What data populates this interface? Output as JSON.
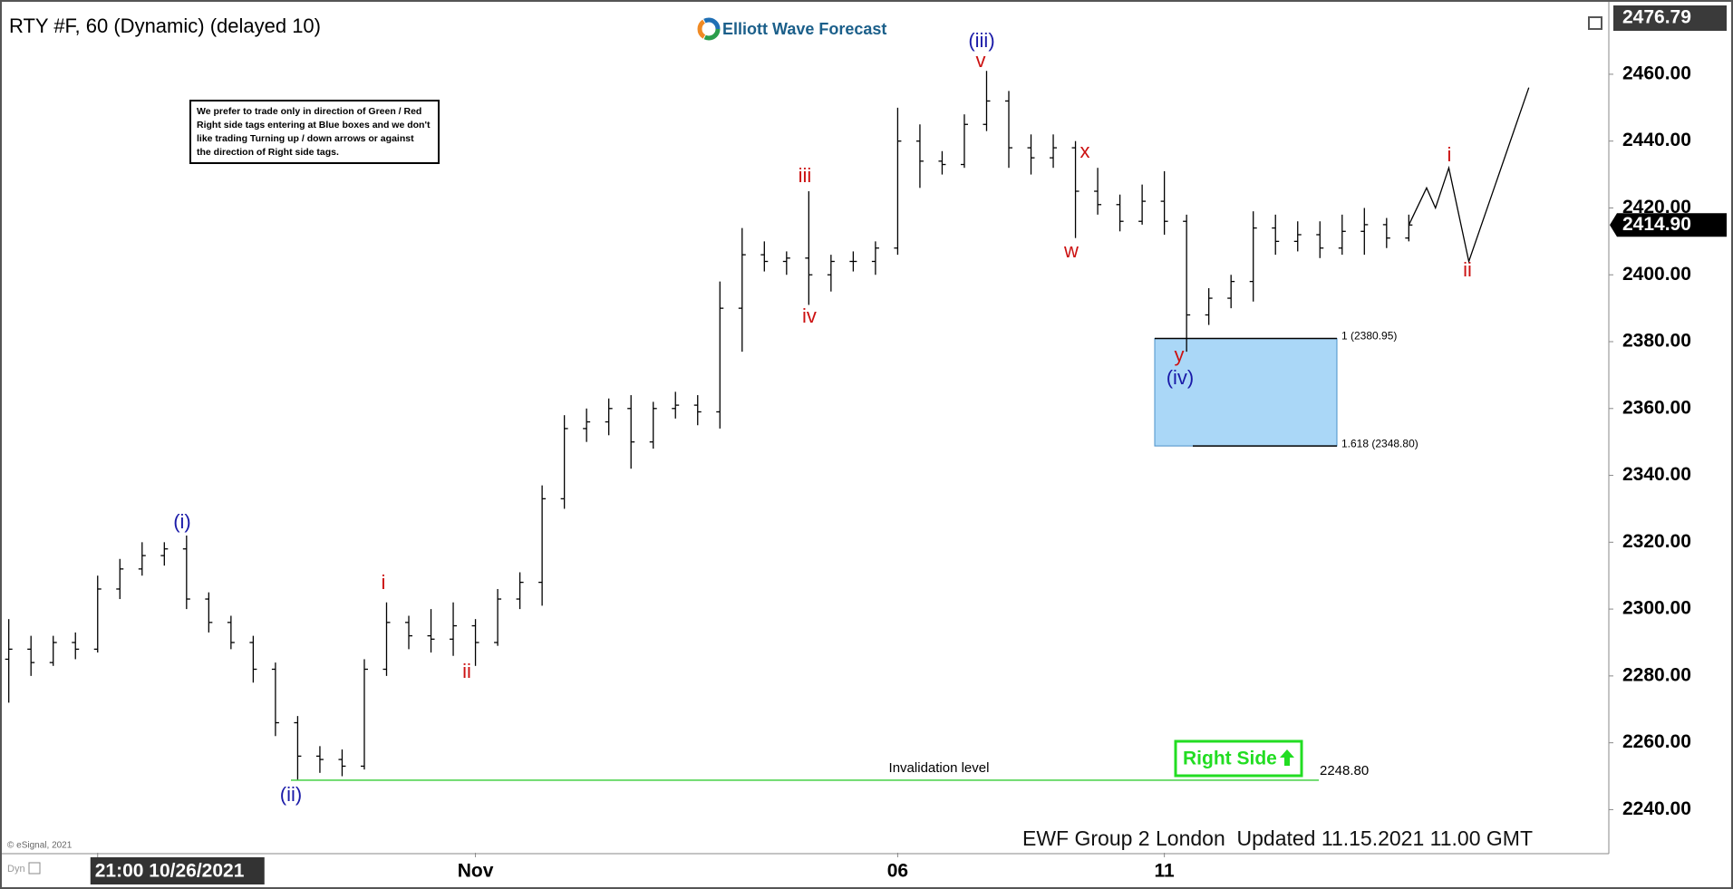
{
  "chart_data": {
    "type": "ohlc",
    "title": "RTY #F, 60 (Dynamic) (delayed 10)",
    "logo": "Elliott Wave Forecast",
    "note": [
      "We prefer to trade only in direction of Green / Red",
      "Right side tags entering at Blue boxes and we don't",
      "like trading Turning up / down arrows or against",
      "the direction of Right side tags."
    ],
    "footer": "EWF Group 2 London  Updated 11.15.2021 11.00 GMT",
    "copyright": "© eSignal, 2021",
    "mode": "Dyn",
    "x": [
      0,
      1,
      2,
      3,
      4,
      5,
      6,
      7,
      8,
      9,
      10,
      11,
      12,
      13,
      14,
      15,
      16,
      17,
      18,
      19,
      20,
      21,
      22,
      23,
      24,
      25,
      26,
      27,
      28,
      29,
      30,
      31,
      32,
      33,
      34,
      35,
      36,
      37,
      38,
      39,
      40,
      41,
      42,
      43,
      44,
      45,
      46,
      47,
      48,
      49,
      50,
      51,
      52,
      53,
      54,
      55,
      56,
      57,
      58,
      59,
      60,
      61,
      62,
      63
    ],
    "open": [
      2285,
      2288,
      2284,
      2290,
      2288,
      2306,
      2312,
      2316,
      2318,
      2303,
      2296,
      2290,
      2282,
      2266,
      2256,
      2255,
      2253,
      2282,
      2296,
      2292,
      2291,
      2295,
      2290,
      2303,
      2308,
      2333,
      2354,
      2356,
      2360,
      2350,
      2360,
      2361,
      2359,
      2390,
      2406,
      2404,
      2405,
      2400,
      2404,
      2404,
      2408,
      2440,
      2434,
      2433,
      2445,
      2452,
      2438,
      2435,
      2438,
      2425,
      2421,
      2416,
      2422,
      2416,
      2388,
      2393,
      2398,
      2414,
      2410,
      2412,
      2408,
      2413,
      2415,
      2411
    ],
    "high": [
      2297,
      2292,
      2292,
      2293,
      2310,
      2315,
      2320,
      2320,
      2322,
      2305,
      2298,
      2292,
      2284,
      2268,
      2259,
      2258,
      2285,
      2302,
      2298,
      2300,
      2302,
      2297,
      2306,
      2311,
      2337,
      2358,
      2360,
      2363,
      2364,
      2362,
      2365,
      2364,
      2398,
      2414,
      2410,
      2407,
      2425,
      2406,
      2407,
      2410,
      2450,
      2445,
      2437,
      2448,
      2461,
      2455,
      2442,
      2442,
      2440,
      2432,
      2424,
      2427,
      2431,
      2418,
      2396,
      2400,
      2419,
      2418,
      2416,
      2416,
      2418,
      2420,
      2417,
      2418
    ],
    "low": [
      2272,
      2280,
      2283,
      2285,
      2287,
      2303,
      2310,
      2313,
      2300,
      2293,
      2288,
      2278,
      2262,
      2249,
      2251,
      2250,
      2252,
      2280,
      2288,
      2287,
      2286,
      2283,
      2289,
      2300,
      2301,
      2330,
      2350,
      2352,
      2342,
      2348,
      2357,
      2355,
      2354,
      2377,
      2401,
      2400,
      2391,
      2395,
      2401,
      2400,
      2406,
      2426,
      2430,
      2432,
      2443,
      2432,
      2430,
      2432,
      2411,
      2418,
      2413,
      2415,
      2412,
      2377,
      2385,
      2390,
      2392,
      2406,
      2407,
      2405,
      2406,
      2406,
      2408,
      2410
    ],
    "close": [
      2288,
      2284,
      2290,
      2288,
      2306,
      2312,
      2316,
      2318,
      2303,
      2296,
      2290,
      2282,
      2266,
      2256,
      2255,
      2253,
      2282,
      2296,
      2292,
      2291,
      2295,
      2290,
      2303,
      2308,
      2333,
      2354,
      2356,
      2360,
      2350,
      2360,
      2361,
      2359,
      2390,
      2406,
      2404,
      2405,
      2400,
      2404,
      2404,
      2408,
      2440,
      2434,
      2433,
      2445,
      2452,
      2438,
      2435,
      2438,
      2425,
      2421,
      2416,
      2422,
      2416,
      2388,
      2393,
      2398,
      2414,
      2410,
      2412,
      2408,
      2413,
      2415,
      2411,
      2414.9
    ],
    "bar_color": "#000000",
    "projection": {
      "x": [
        63,
        63.8,
        64.2,
        64.8,
        65.7,
        68.4
      ],
      "values": [
        2414.9,
        2426,
        2420,
        2432,
        2404,
        2456
      ],
      "color": "#000000"
    },
    "xlim": [
      -0.15,
      72
    ],
    "xticks": [
      {
        "value": 4,
        "label": "21:00 10/26/2021"
      },
      {
        "value": 21,
        "label": "Nov"
      },
      {
        "value": 40,
        "label": "06"
      },
      {
        "value": 52,
        "label": "11"
      }
    ],
    "ylim": [
      2227.1,
      2479.5
    ],
    "yticks": [
      {
        "value": 2240,
        "label": "2240.00"
      },
      {
        "value": 2260,
        "label": "2260.00"
      },
      {
        "value": 2280,
        "label": "2280.00"
      },
      {
        "value": 2300,
        "label": "2300.00"
      },
      {
        "value": 2320,
        "label": "2320.00"
      },
      {
        "value": 2340,
        "label": "2340.00"
      },
      {
        "value": 2360,
        "label": "2360.00"
      },
      {
        "value": 2380,
        "label": "2380.00"
      },
      {
        "value": 2400,
        "label": "2400.00"
      },
      {
        "value": 2420,
        "label": "2420.00"
      },
      {
        "value": 2440,
        "label": "2440.00"
      },
      {
        "value": 2460,
        "label": "2460.00"
      }
    ],
    "grid": false,
    "top_price": {
      "value": 2476.79,
      "label": "2476.79"
    },
    "last_price": {
      "value": 2414.9,
      "label": "2414.90"
    },
    "fib_box": {
      "color": "#aad7f7",
      "levels": [
        {
          "value": 2380.95,
          "label": "1 (2380.95)"
        },
        {
          "value": 2348.8,
          "label": "1.618 (2348.80)"
        }
      ]
    },
    "invalidation": {
      "value": 2248.8,
      "label": "2248.80",
      "text": "Invalidation level",
      "color": "#33cc33"
    },
    "right_side": {
      "text": "Right Side",
      "color": "#22dd22"
    },
    "wave_labels": [
      {
        "text": "(i)",
        "color": "#1a1aa8"
      },
      {
        "text": "(ii)",
        "color": "#1a1aa8"
      },
      {
        "text": "i",
        "color": "#cc1111"
      },
      {
        "text": "ii",
        "color": "#cc1111"
      },
      {
        "text": "iii",
        "color": "#cc1111"
      },
      {
        "text": "iv",
        "color": "#cc1111"
      },
      {
        "text": "(iii)",
        "color": "#1a1aa8"
      },
      {
        "text": "v",
        "color": "#cc1111"
      },
      {
        "text": "w",
        "color": "#cc1111"
      },
      {
        "text": "x",
        "color": "#cc1111"
      },
      {
        "text": "y",
        "color": "#cc1111"
      },
      {
        "text": "(iv)",
        "color": "#1a1aa8"
      },
      {
        "text": "i",
        "color": "#cc1111"
      },
      {
        "text": "ii",
        "color": "#cc1111"
      }
    ]
  }
}
